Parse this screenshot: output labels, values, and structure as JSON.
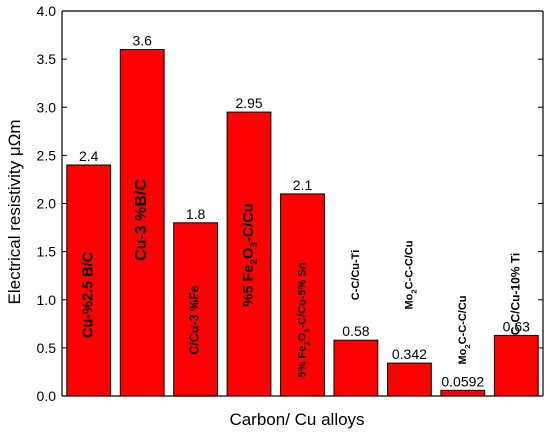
{
  "chart_data": {
    "type": "bar",
    "xlabel": "Carbon/ Cu alloys",
    "ylabel": "Electrical resistivity  μΩm",
    "ylim": [
      0,
      4.0
    ],
    "yticks": [
      "0.0",
      "0.5",
      "1.0",
      "1.5",
      "2.0",
      "2.5",
      "3.0",
      "3.5",
      "4.0"
    ],
    "grid": false,
    "bar_color": "#ff0000",
    "bars": [
      {
        "category": "Cu-%2.5 B/C",
        "value": 2.4,
        "value_label": "2.4"
      },
      {
        "category": "Cu-3 %B/C",
        "value": 3.6,
        "value_label": "3.6"
      },
      {
        "category": "C/Cu-3 %Fe",
        "value": 1.8,
        "value_label": "1.8"
      },
      {
        "category": "%5 Fe2O3-C/Cu",
        "value": 2.95,
        "value_label": "2.95"
      },
      {
        "category": "5% Fe2O3-C/Cu-5% Sn",
        "value": 2.1,
        "value_label": "2.1"
      },
      {
        "category": "C-C/Cu-Ti",
        "value": 0.58,
        "value_label": "0.58"
      },
      {
        "category": "Mo2C-C-C/Cu",
        "value": 0.342,
        "value_label": "0.342"
      },
      {
        "category": "Mo2C-C-C/Cu",
        "value": 0.0592,
        "value_label": "0.0592"
      },
      {
        "category": "C-C/Cu-10% Ti",
        "value": 0.63,
        "value_label": "0.63"
      }
    ]
  }
}
